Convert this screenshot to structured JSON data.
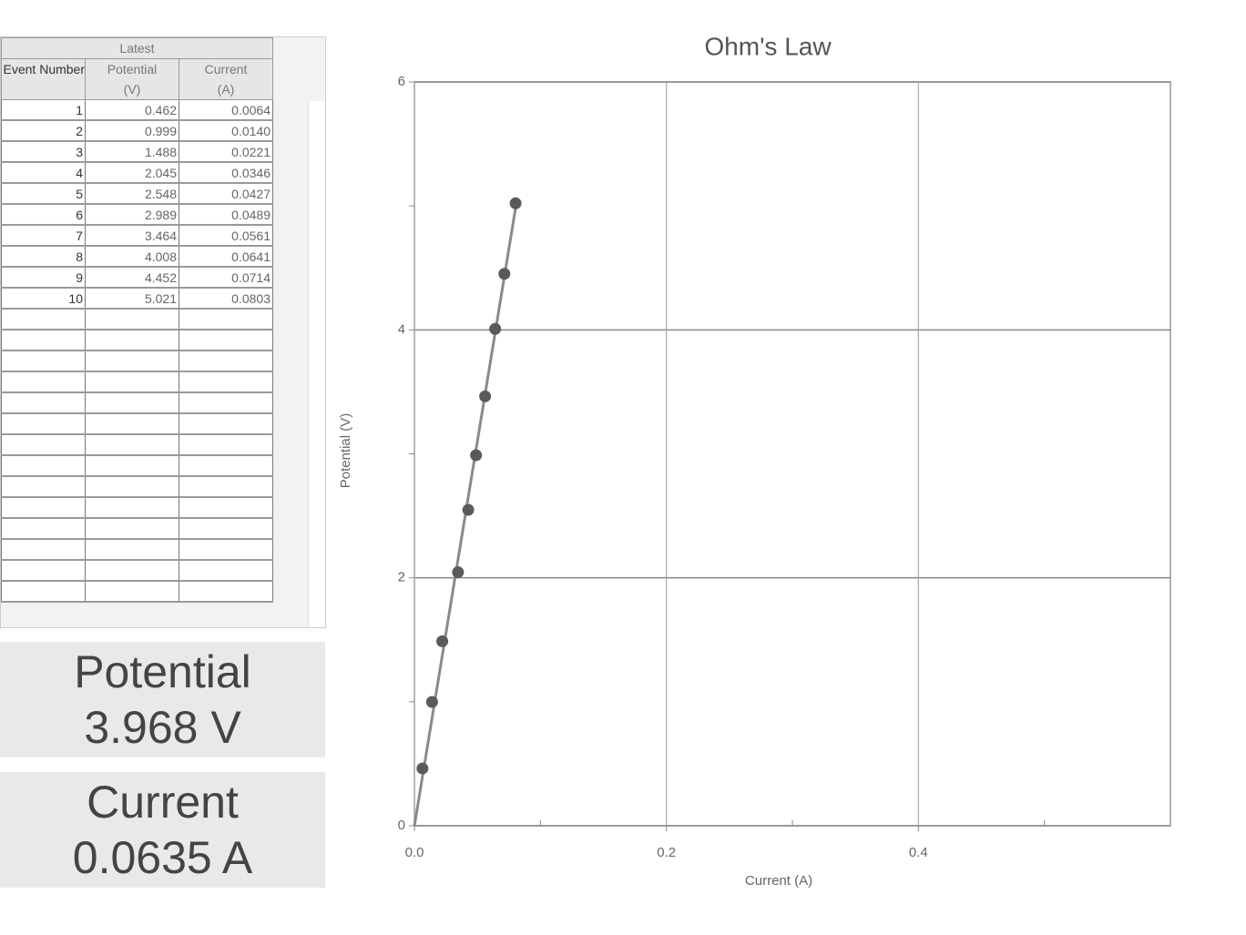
{
  "table": {
    "group_header": "Latest",
    "columns": [
      {
        "name": "Event Number"
      },
      {
        "name": "Potential",
        "unit": "(V)"
      },
      {
        "name": "Current",
        "unit": "(A)"
      }
    ],
    "rows": [
      [
        "1",
        "0.462",
        "0.0064"
      ],
      [
        "2",
        "0.999",
        "0.0140"
      ],
      [
        "3",
        "1.488",
        "0.0221"
      ],
      [
        "4",
        "2.045",
        "0.0346"
      ],
      [
        "5",
        "2.548",
        "0.0427"
      ],
      [
        "6",
        "2.989",
        "0.0489"
      ],
      [
        "7",
        "3.464",
        "0.0561"
      ],
      [
        "8",
        "4.008",
        "0.0641"
      ],
      [
        "9",
        "4.452",
        "0.0714"
      ],
      [
        "10",
        "5.021",
        "0.0803"
      ]
    ]
  },
  "meters": [
    {
      "label": "Potential",
      "reading": "3.968 V"
    },
    {
      "label": "Current",
      "reading": "0.0635 A"
    }
  ],
  "chart_data": {
    "type": "scatter",
    "title": "Ohm's Law",
    "x_label": "Current (A)",
    "y_label": "Potential (V)",
    "x": [
      0.0064,
      0.014,
      0.0221,
      0.0346,
      0.0427,
      0.0489,
      0.0561,
      0.0641,
      0.0714,
      0.0803
    ],
    "values": [
      0.462,
      0.999,
      1.488,
      2.045,
      2.548,
      2.989,
      3.464,
      4.008,
      4.452,
      5.021
    ],
    "color": "#5a5a5a",
    "fit_line": true,
    "fit_color": "#8a8a8a",
    "xlim": [
      0,
      0.6
    ],
    "ylim": [
      0,
      6
    ],
    "xticks": [
      {
        "value": 0,
        "label": "0.0"
      },
      0.2,
      0.4
    ],
    "yticks": [
      0,
      2,
      4,
      6
    ],
    "xminorticks": [
      0.1,
      0.3,
      0.5
    ],
    "yminorticks": [
      1,
      3,
      5
    ],
    "grid": true
  }
}
